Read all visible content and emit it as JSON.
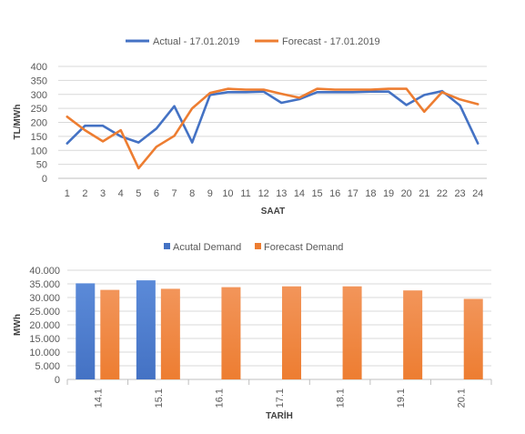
{
  "chart_data": [
    {
      "type": "line",
      "ylabel": "TL/MWh",
      "xlabel": "SAAT",
      "ylim": [
        0,
        400
      ],
      "yticks": [
        0,
        50,
        100,
        150,
        200,
        250,
        300,
        350,
        400
      ],
      "grid": true,
      "legend_position": "top",
      "x": [
        "1",
        "2",
        "3",
        "4",
        "5",
        "6",
        "7",
        "8",
        "9",
        "10",
        "11",
        "12",
        "13",
        "14",
        "15",
        "16",
        "17",
        "18",
        "19",
        "20",
        "21",
        "22",
        "23",
        "24"
      ],
      "series": [
        {
          "name": "Actual - 17.01.2019",
          "color": "#4472c4",
          "values": [
            125,
            188,
            188,
            150,
            128,
            178,
            258,
            128,
            298,
            308,
            308,
            310,
            270,
            283,
            308,
            308,
            308,
            310,
            310,
            262,
            298,
            312,
            260,
            125
          ]
        },
        {
          "name": "Forecast - 17.01.2019",
          "color": "#ed7d31",
          "values": [
            220,
            172,
            132,
            172,
            36,
            113,
            152,
            250,
            305,
            320,
            317,
            317,
            302,
            288,
            320,
            317,
            317,
            317,
            320,
            320,
            238,
            308,
            282,
            265
          ]
        }
      ]
    },
    {
      "type": "bar",
      "ylabel": "MWh",
      "xlabel": "TARİH",
      "ylim": [
        0,
        40000
      ],
      "yticks": [
        "0",
        "5.000",
        "10.000",
        "15.000",
        "20.000",
        "25.000",
        "30.000",
        "35.000",
        "40.000"
      ],
      "grid": true,
      "legend_position": "top",
      "categories": [
        "14.1",
        "15.1",
        "16.1",
        "17.1",
        "18.1",
        "19.1",
        "20.1"
      ],
      "series": [
        {
          "name": "Acutal Demand",
          "color": "#4472c4",
          "values": [
            35200,
            36300,
            null,
            null,
            null,
            null,
            null
          ]
        },
        {
          "name": "Forecast Demand",
          "color": "#ed7d31",
          "values": [
            32800,
            33200,
            33800,
            34100,
            34100,
            32600,
            29500
          ]
        }
      ]
    }
  ]
}
